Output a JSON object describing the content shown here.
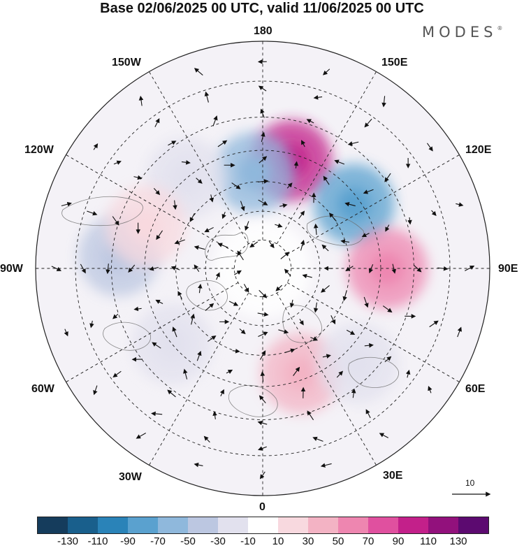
{
  "title": "Base 02/06/2025 00 UTC, valid 11/06/2025 00 UTC",
  "brand": "MODES",
  "brand_mark": "®",
  "lon_labels": {
    "l180": "180",
    "l150e": "150E",
    "l120e": "120E",
    "l90e": "90E",
    "l60e": "60E",
    "l30e": "30E",
    "l0": "0",
    "l30w": "30W",
    "l60w": "60W",
    "l90w": "90W",
    "l120w": "120W",
    "l150w": "150W"
  },
  "vector_ref": {
    "label": "10"
  },
  "colorbar": {
    "colors": [
      "#153c5c",
      "#195f8c",
      "#2a83b8",
      "#5aa1cf",
      "#8fb8dc",
      "#bcc7e1",
      "#e2e1ee",
      "#ffffff",
      "#f8d9df",
      "#f3b3c4",
      "#ee86b0",
      "#e0509f",
      "#c3208a",
      "#92117c",
      "#5c0a70"
    ],
    "ticks": [
      "-130",
      "-110",
      "-90",
      "-70",
      "-50",
      "-30",
      "-10",
      "10",
      "30",
      "50",
      "70",
      "90",
      "110",
      "130"
    ]
  },
  "anomalies": [
    {
      "c": 12,
      "lon": 165,
      "lat": 52
    },
    {
      "c": 4,
      "lon": -175,
      "lat": 57
    },
    {
      "c": 3,
      "lon": 125,
      "lat": 52
    },
    {
      "c": 10,
      "lon": 90,
      "lat": 48
    },
    {
      "c": 5,
      "lon": -95,
      "lat": 42
    },
    {
      "c": 9,
      "lon": 20,
      "lat": 52
    },
    {
      "c": 6,
      "lon": 45,
      "lat": 45
    },
    {
      "c": 6,
      "lon": -50,
      "lat": 50
    },
    {
      "c": 6,
      "lon": -140,
      "lat": 50
    },
    {
      "c": 8,
      "lon": -110,
      "lat": 48
    }
  ]
}
